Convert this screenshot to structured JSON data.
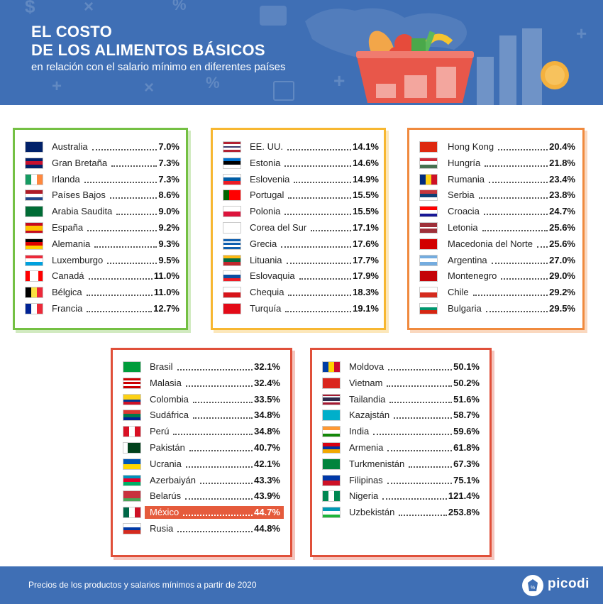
{
  "header": {
    "title_line1": "EL COSTO",
    "title_line2": "DE LOS ALIMENTOS BÁSICOS",
    "subtitle": "en relación con el salario mínimo en diferentes países"
  },
  "colors": {
    "header_bg": "#3f6fb5",
    "green": "#74c043",
    "yellow": "#f7b731",
    "orange": "#f08a3e",
    "red": "#e0503a",
    "highlight": "#e55b3c"
  },
  "panels": [
    {
      "items": [
        {
          "country": "Australia",
          "value": "7.0%",
          "flag": "australia"
        },
        {
          "country": "Gran Bretaña",
          "value": "7.3%",
          "flag": "uk"
        },
        {
          "country": "Irlanda",
          "value": "7.3%",
          "flag": "ireland"
        },
        {
          "country": "Países Bajos",
          "value": "8.6%",
          "flag": "netherlands"
        },
        {
          "country": "Arabia Saudita",
          "value": "9.0%",
          "flag": "saudi-arabia"
        },
        {
          "country": "España",
          "value": "9.2%",
          "flag": "spain"
        },
        {
          "country": "Alemania",
          "value": "9.3%",
          "flag": "germany"
        },
        {
          "country": "Luxemburgo",
          "value": "9.5%",
          "flag": "luxembourg"
        },
        {
          "country": "Canadá",
          "value": "11.0%",
          "flag": "canada"
        },
        {
          "country": "Bélgica",
          "value": "11.0%",
          "flag": "belgium"
        },
        {
          "country": "Francia",
          "value": "12.7%",
          "flag": "france"
        }
      ]
    },
    {
      "items": [
        {
          "country": "EE. UU.",
          "value": "14.1%",
          "flag": "usa"
        },
        {
          "country": "Estonia",
          "value": "14.6%",
          "flag": "estonia"
        },
        {
          "country": "Eslovenia",
          "value": "14.9%",
          "flag": "slovenia"
        },
        {
          "country": "Portugal",
          "value": "15.5%",
          "flag": "portugal"
        },
        {
          "country": "Polonia",
          "value": "15.5%",
          "flag": "poland"
        },
        {
          "country": "Corea del Sur",
          "value": "17.1%",
          "flag": "south-korea"
        },
        {
          "country": "Grecia",
          "value": "17.6%",
          "flag": "greece"
        },
        {
          "country": "Lituania",
          "value": "17.7%",
          "flag": "lithuania"
        },
        {
          "country": "Eslovaquia",
          "value": "17.9%",
          "flag": "slovakia"
        },
        {
          "country": "Chequia",
          "value": "18.3%",
          "flag": "czechia"
        },
        {
          "country": "Turquía",
          "value": "19.1%",
          "flag": "turkey"
        }
      ]
    },
    {
      "items": [
        {
          "country": "Hong Kong",
          "value": "20.4%",
          "flag": "hong-kong"
        },
        {
          "country": "Hungría",
          "value": "21.8%",
          "flag": "hungary"
        },
        {
          "country": "Rumania",
          "value": "23.4%",
          "flag": "romania"
        },
        {
          "country": "Serbia",
          "value": "23.8%",
          "flag": "serbia"
        },
        {
          "country": "Croacia",
          "value": "24.7%",
          "flag": "croatia"
        },
        {
          "country": "Letonia",
          "value": "25.6%",
          "flag": "latvia"
        },
        {
          "country": "Macedonia del Norte",
          "value": "25.6%",
          "flag": "north-macedonia"
        },
        {
          "country": "Argentina",
          "value": "27.0%",
          "flag": "argentina"
        },
        {
          "country": "Montenegro",
          "value": "29.0%",
          "flag": "montenegro"
        },
        {
          "country": "Chile",
          "value": "29.2%",
          "flag": "chile"
        },
        {
          "country": "Bulgaria",
          "value": "29.5%",
          "flag": "bulgaria"
        }
      ]
    },
    {
      "items": [
        {
          "country": "Brasil",
          "value": "32.1%",
          "flag": "brazil"
        },
        {
          "country": "Malasia",
          "value": "32.4%",
          "flag": "malaysia"
        },
        {
          "country": "Colombia",
          "value": "33.5%",
          "flag": "colombia"
        },
        {
          "country": "Sudáfrica",
          "value": "34.8%",
          "flag": "south-africa"
        },
        {
          "country": "Perú",
          "value": "34.8%",
          "flag": "peru"
        },
        {
          "country": "Pakistán",
          "value": "40.7%",
          "flag": "pakistan"
        },
        {
          "country": "Ucrania",
          "value": "42.1%",
          "flag": "ukraine"
        },
        {
          "country": "Azerbaiyán",
          "value": "43.3%",
          "flag": "azerbaijan"
        },
        {
          "country": "Belarús",
          "value": "43.9%",
          "flag": "belarus"
        },
        {
          "country": "México",
          "value": "44.7%",
          "flag": "mexico",
          "highlight": true
        },
        {
          "country": "Rusia",
          "value": "44.8%",
          "flag": "russia"
        }
      ]
    },
    {
      "items": [
        {
          "country": "Moldova",
          "value": "50.1%",
          "flag": "moldova"
        },
        {
          "country": "Vietnam",
          "value": "50.2%",
          "flag": "vietnam"
        },
        {
          "country": "Tailandia",
          "value": "51.6%",
          "flag": "thailand"
        },
        {
          "country": "Kazajstán",
          "value": "58.7%",
          "flag": "kazakhstan"
        },
        {
          "country": "India",
          "value": "59.6%",
          "flag": "india"
        },
        {
          "country": "Armenia",
          "value": "61.8%",
          "flag": "armenia"
        },
        {
          "country": "Turkmenistán",
          "value": "67.3%",
          "flag": "turkmenistan"
        },
        {
          "country": "Filipinas",
          "value": "75.1%",
          "flag": "philippines"
        },
        {
          "country": "Nigeria",
          "value": "121.4%",
          "flag": "nigeria"
        },
        {
          "country": "Uzbekistán",
          "value": "253.8%",
          "flag": "uzbekistan"
        }
      ]
    }
  ],
  "footer": {
    "note": "Precios de los productos y salarios mínimos a partir de 2020",
    "logo_text": "picodi"
  }
}
